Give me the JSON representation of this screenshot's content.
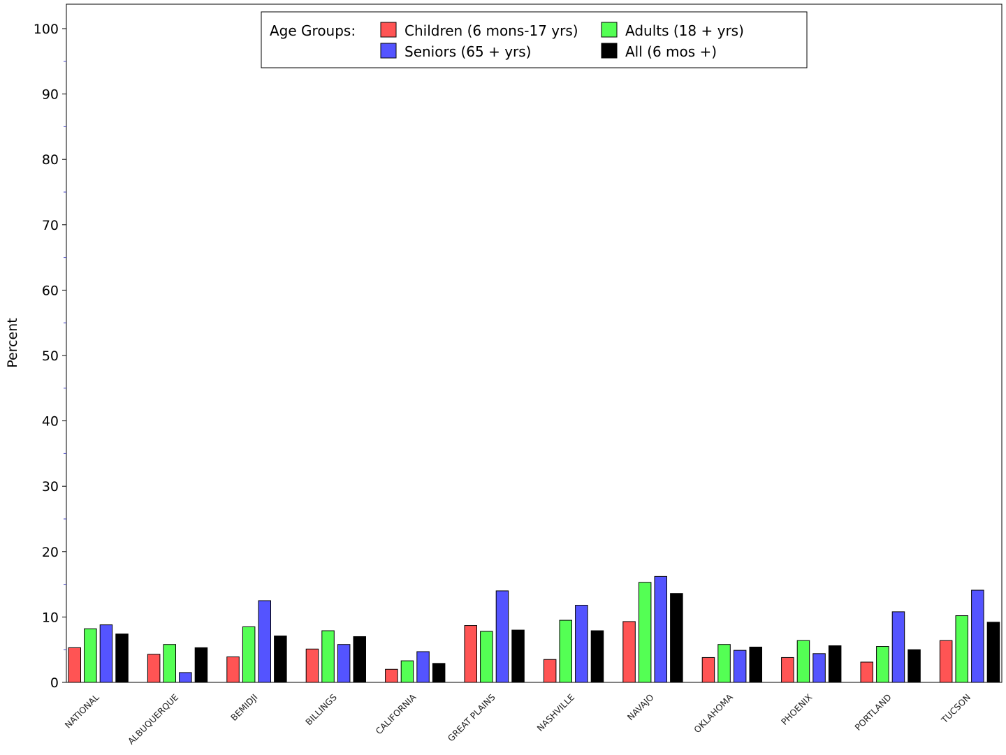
{
  "chart_data": {
    "type": "bar",
    "ylabel": "Percent",
    "xlabel": "",
    "ylim": [
      0,
      100
    ],
    "yticks": [
      "0",
      "10",
      "20",
      "30",
      "40",
      "50",
      "60",
      "70",
      "80",
      "90",
      "100"
    ],
    "grid": false,
    "legend_position": "top-center",
    "legend_title": "Age Groups:",
    "categories": [
      "NATIONAL",
      "ALBUQUERQUE",
      "BEMIDJI",
      "BILLINGS",
      "CALIFORNIA",
      "GREAT PLAINS",
      "NASHVILLE",
      "NAVAJO",
      "OKLAHOMA",
      "PHOENIX",
      "PORTLAND",
      "TUCSON"
    ],
    "series": [
      {
        "name": "Children (6 mons-17 yrs)",
        "color": "#ff5454",
        "values": [
          5.3,
          4.3,
          3.9,
          5.1,
          2.0,
          8.7,
          3.5,
          9.3,
          3.8,
          3.8,
          3.1,
          6.4
        ]
      },
      {
        "name": "Adults (18 + yrs)",
        "color": "#54ff54",
        "values": [
          8.2,
          5.8,
          8.5,
          7.9,
          3.3,
          7.8,
          9.5,
          15.3,
          5.8,
          6.4,
          5.5,
          10.2
        ]
      },
      {
        "name": "Seniors (65 + yrs)",
        "color": "#5454ff",
        "values": [
          8.8,
          1.5,
          12.5,
          5.8,
          4.7,
          14.0,
          11.8,
          16.2,
          4.9,
          4.4,
          10.8,
          14.1
        ]
      },
      {
        "name": "All (6 mos +)",
        "color": "#000000",
        "values": [
          7.4,
          5.3,
          7.1,
          7.0,
          2.9,
          8.0,
          7.9,
          13.6,
          5.4,
          5.6,
          5.0,
          9.2
        ]
      }
    ]
  }
}
